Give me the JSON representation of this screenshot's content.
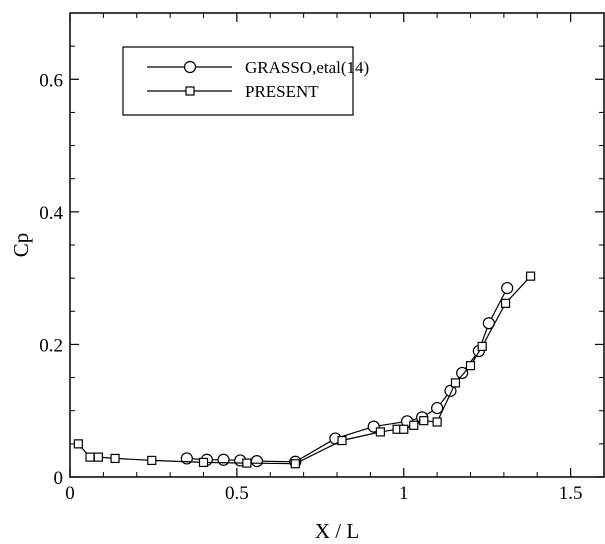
{
  "chart_data": {
    "type": "line",
    "title": "",
    "xlabel": "X / L",
    "ylabel": "Cp",
    "xlim": [
      0,
      1.6
    ],
    "ylim": [
      0,
      0.7
    ],
    "x_ticks": [
      0,
      0.5,
      1,
      1.5
    ],
    "x_tick_labels": [
      "0",
      "0.5",
      "1",
      "1.5"
    ],
    "y_ticks": [
      0,
      0.2,
      0.4,
      0.6
    ],
    "y_tick_labels": [
      "0",
      "0.2",
      "0.4",
      "0.6"
    ],
    "grid": false,
    "legend_position": "top-left",
    "series": [
      {
        "name": "GRASSO,etal(14)",
        "marker": "circle",
        "x": [
          0.35,
          0.41,
          0.46,
          0.51,
          0.56,
          0.675,
          0.795,
          0.91,
          1.01,
          1.055,
          1.1,
          1.14,
          1.175,
          1.225,
          1.255,
          1.31
        ],
        "y": [
          0.028,
          0.026,
          0.026,
          0.025,
          0.024,
          0.023,
          0.058,
          0.076,
          0.084,
          0.09,
          0.104,
          0.13,
          0.157,
          0.19,
          0.232,
          0.285
        ]
      },
      {
        "name": "PRESENT",
        "marker": "square",
        "x": [
          0.025,
          0.06,
          0.085,
          0.135,
          0.245,
          0.4,
          0.53,
          0.675,
          0.815,
          0.93,
          0.98,
          1.0,
          1.03,
          1.06,
          1.1,
          1.155,
          1.2,
          1.235,
          1.305,
          1.38
        ],
        "y": [
          0.05,
          0.03,
          0.03,
          0.028,
          0.025,
          0.022,
          0.021,
          0.02,
          0.055,
          0.068,
          0.072,
          0.072,
          0.078,
          0.085,
          0.083,
          0.142,
          0.168,
          0.197,
          0.262,
          0.303
        ]
      }
    ],
    "colors": {
      "line": "#000000",
      "background": "#ffffff"
    }
  }
}
